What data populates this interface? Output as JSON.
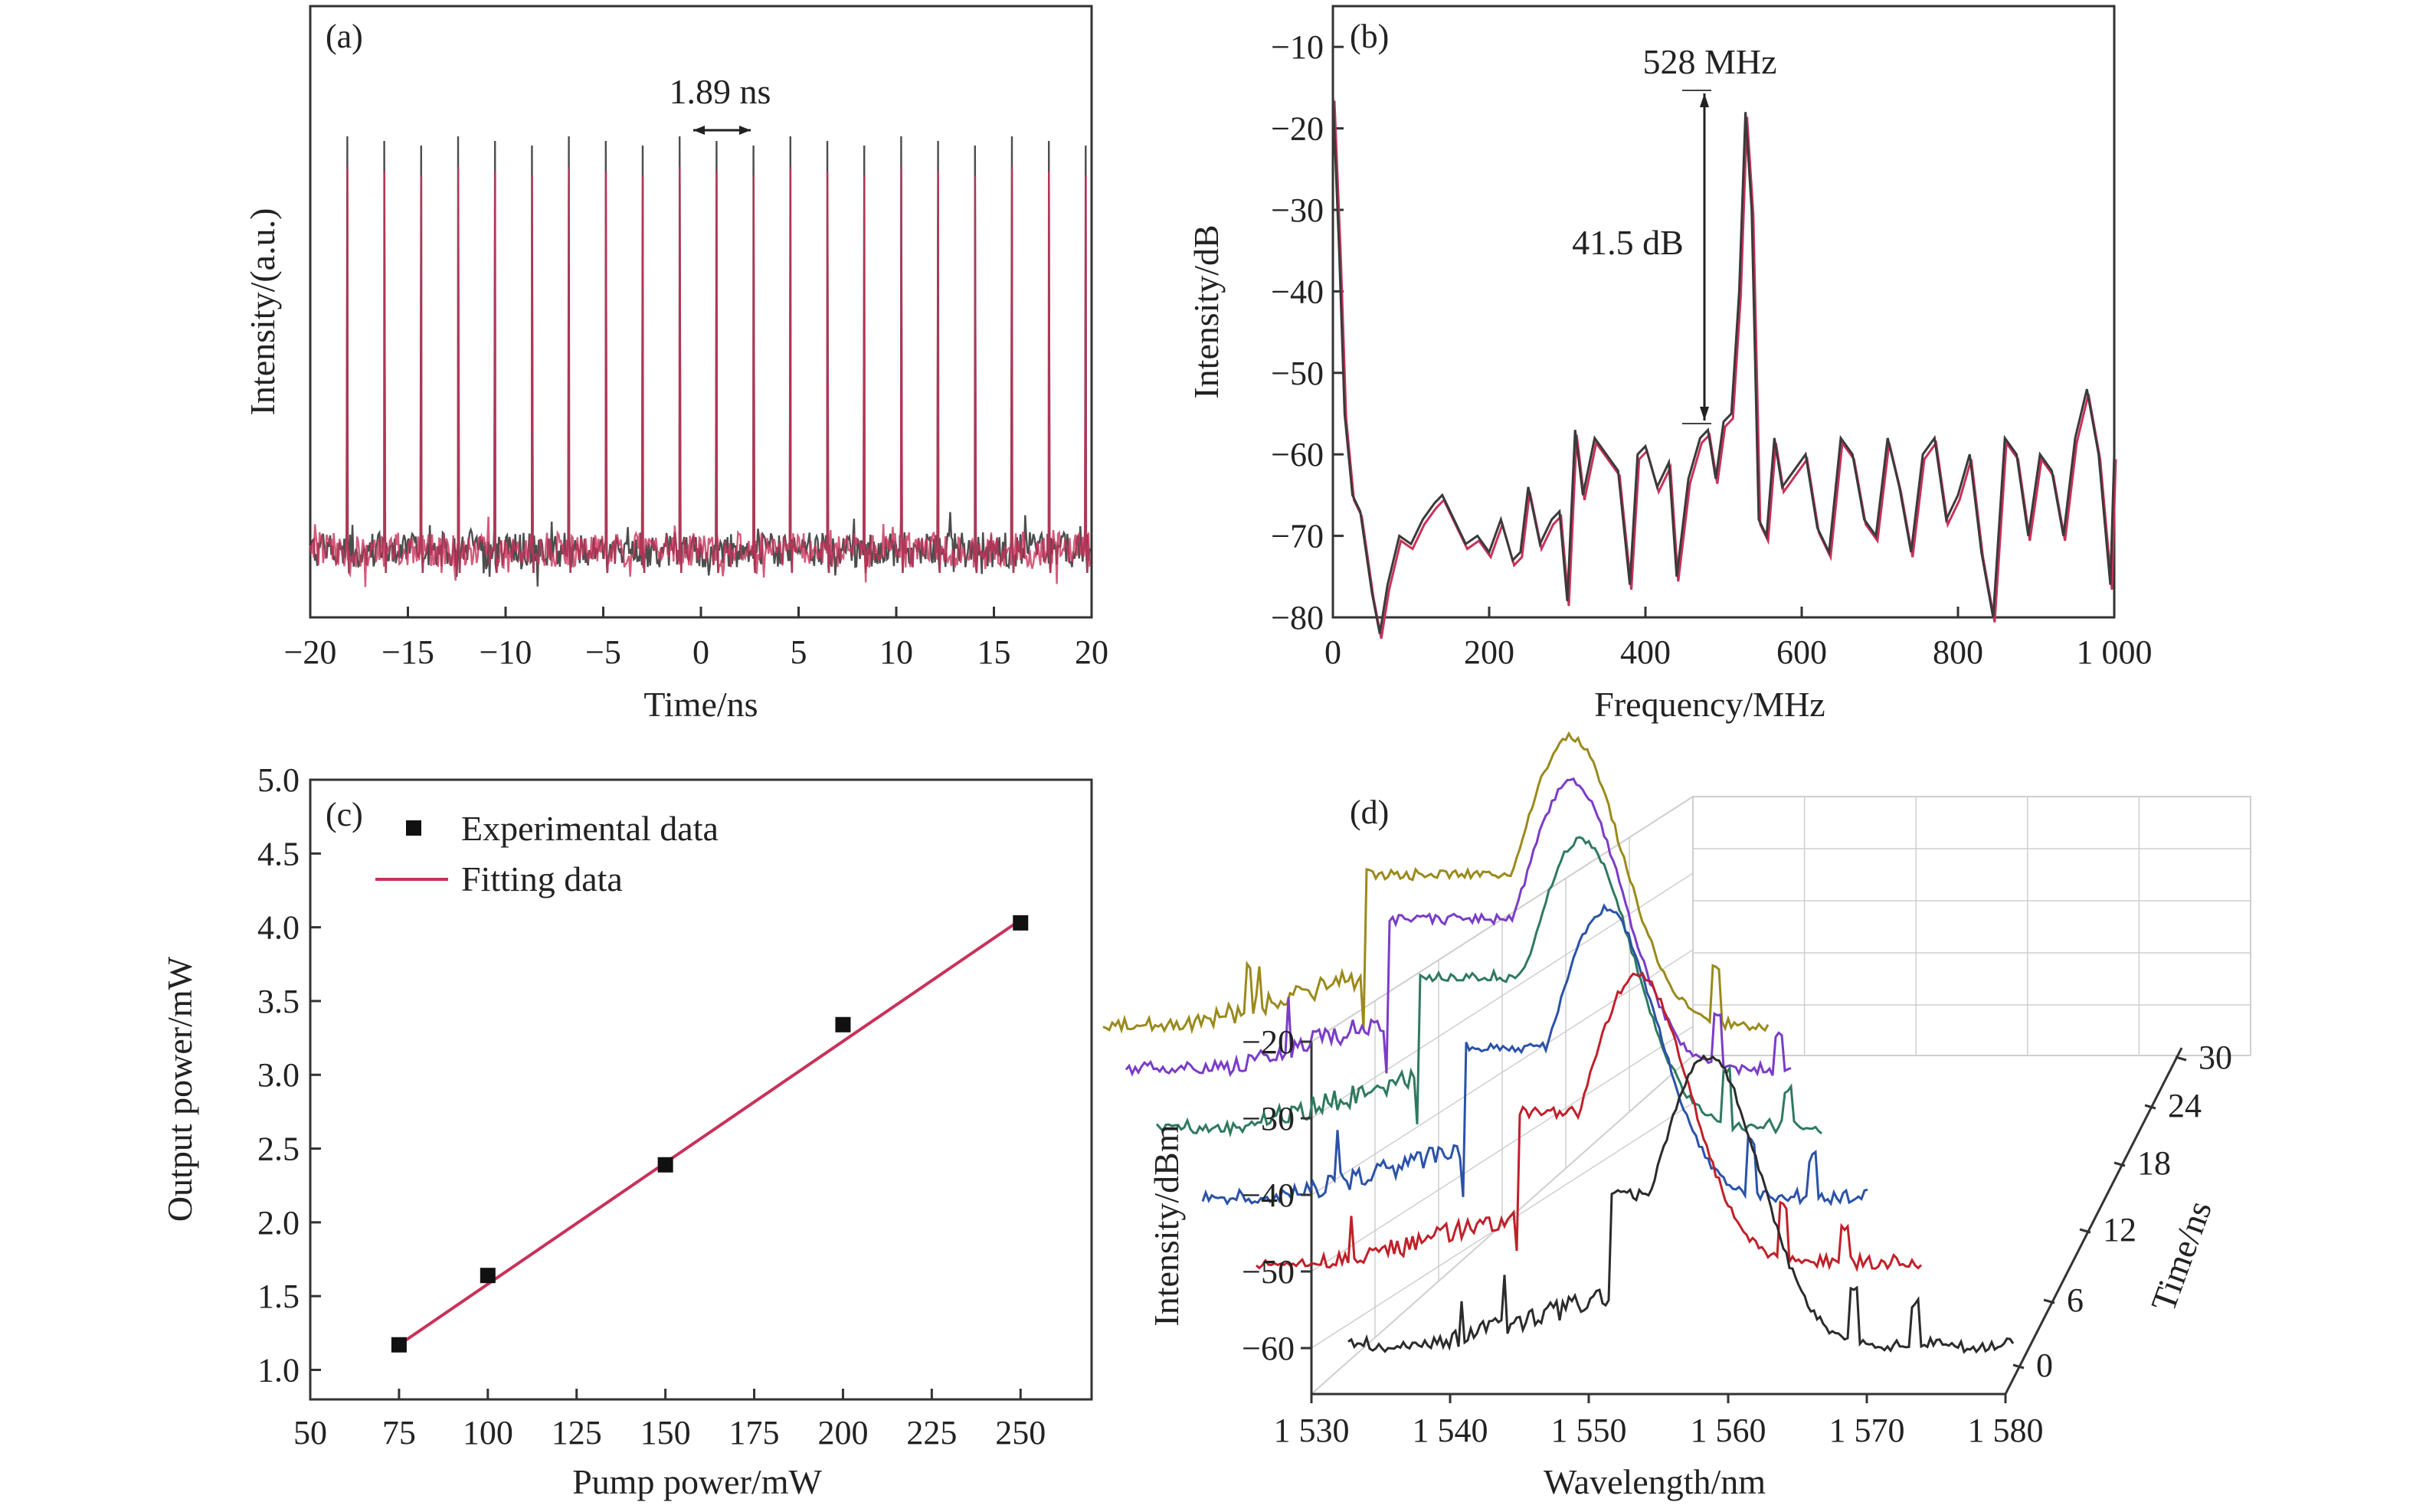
{
  "chart_data": [
    {
      "panel": "(a)",
      "type": "line",
      "xlabel": "Time/ns",
      "ylabel": "Intensity/(a.u.)",
      "xlim": [
        -20,
        20
      ],
      "xticks": [
        "−20",
        "−15",
        "−10",
        "−5",
        "0",
        "5",
        "10",
        "15",
        "20"
      ],
      "pulse_period_ns": 1.89,
      "annotation": "1.89 ns",
      "colors": {
        "trace1": "#3a3a3a",
        "trace2": "#c8325a"
      }
    },
    {
      "panel": "(b)",
      "type": "line",
      "xlabel": "Frequency/MHz",
      "ylabel": "Intensity/dB",
      "xlim": [
        0,
        1000
      ],
      "ylim": [
        -80,
        -5
      ],
      "xticks": [
        "0",
        "200",
        "400",
        "600",
        "800",
        "1 000"
      ],
      "yticks": [
        "−10",
        "−20",
        "−30",
        "−40",
        "−50",
        "−60",
        "−70",
        "−80"
      ],
      "peak_label": "528 MHz",
      "snr_label": "41.5 dB",
      "x": [
        0,
        8,
        15,
        25,
        35,
        50,
        60,
        70,
        85,
        100,
        115,
        130,
        140,
        155,
        170,
        185,
        200,
        215,
        230,
        240,
        250,
        265,
        280,
        290,
        300,
        310,
        320,
        335,
        350,
        365,
        380,
        390,
        400,
        415,
        430,
        440,
        455,
        470,
        480,
        490,
        500,
        510,
        520,
        528,
        536,
        545,
        555,
        565,
        575,
        590,
        605,
        620,
        635,
        650,
        665,
        680,
        695,
        710,
        725,
        740,
        755,
        770,
        785,
        800,
        815,
        830,
        845,
        860,
        875,
        890,
        905,
        920,
        935,
        950,
        965,
        980,
        995,
        1000
      ],
      "y": [
        -16,
        -35,
        -55,
        -65,
        -67,
        -77,
        -82,
        -76,
        -70,
        -71,
        -68,
        -66,
        -65,
        -68,
        -71,
        -70,
        -72,
        -68,
        -73,
        -72,
        -64,
        -71,
        -68,
        -67,
        -78,
        -57,
        -65,
        -58,
        -60,
        -62,
        -76,
        -60,
        -59,
        -64,
        -61,
        -75,
        -63,
        -58,
        -57,
        -63,
        -56,
        -55,
        -40,
        -18,
        -30,
        -68,
        -70,
        -58,
        -64,
        -62,
        -60,
        -69,
        -72,
        -58,
        -60,
        -68,
        -70,
        -58,
        -64,
        -72,
        -60,
        -58,
        -68,
        -65,
        -60,
        -72,
        -80,
        -58,
        -60,
        -70,
        -60,
        -62,
        -70,
        -58,
        -52,
        -60,
        -76,
        -60
      ],
      "colors": {
        "trace1": "#3a3a3a",
        "trace2": "#c8325a"
      }
    },
    {
      "panel": "(c)",
      "type": "scatter",
      "xlabel": "Pump power/mW",
      "ylabel": "Output power/mW",
      "xlim": [
        50,
        270
      ],
      "ylim": [
        0.8,
        5.0
      ],
      "xticks": [
        "50",
        "75",
        "100",
        "125",
        "150",
        "175",
        "200",
        "225",
        "250"
      ],
      "yticks": [
        "1.0",
        "1.5",
        "2.0",
        "2.5",
        "3.0",
        "3.5",
        "4.0",
        "4.5",
        "5.0"
      ],
      "legend": [
        "Experimental data",
        "Fitting data"
      ],
      "x": [
        75,
        100,
        150,
        200,
        250
      ],
      "y": [
        1.17,
        1.64,
        2.39,
        3.34,
        4.03
      ],
      "fit": {
        "x": [
          75,
          250
        ],
        "y": [
          1.17,
          4.05
        ]
      },
      "colors": {
        "points": "#111111",
        "fit": "#c8325a"
      }
    },
    {
      "panel": "(d)",
      "type": "line",
      "xlabel": "Wavelength/nm",
      "ylabel": "Intensity/dBm",
      "zlabel": "Time/ns",
      "xticks": [
        "1 530",
        "1 540",
        "1 550",
        "1 560",
        "1 570",
        "1 580"
      ],
      "yticks": [
        "−20",
        "−30",
        "−40",
        "−50",
        "−60"
      ],
      "zticks": [
        "0",
        "6",
        "12",
        "18",
        "24",
        "30"
      ],
      "series": [
        {
          "time": 0,
          "color": "#2b2b2b"
        },
        {
          "time": 6,
          "color": "#c0202a"
        },
        {
          "time": 12,
          "color": "#2a52a8"
        },
        {
          "time": 18,
          "color": "#2e7a5e"
        },
        {
          "time": 24,
          "color": "#7a3cc8"
        },
        {
          "time": 30,
          "color": "#9a8a1a"
        }
      ]
    }
  ]
}
